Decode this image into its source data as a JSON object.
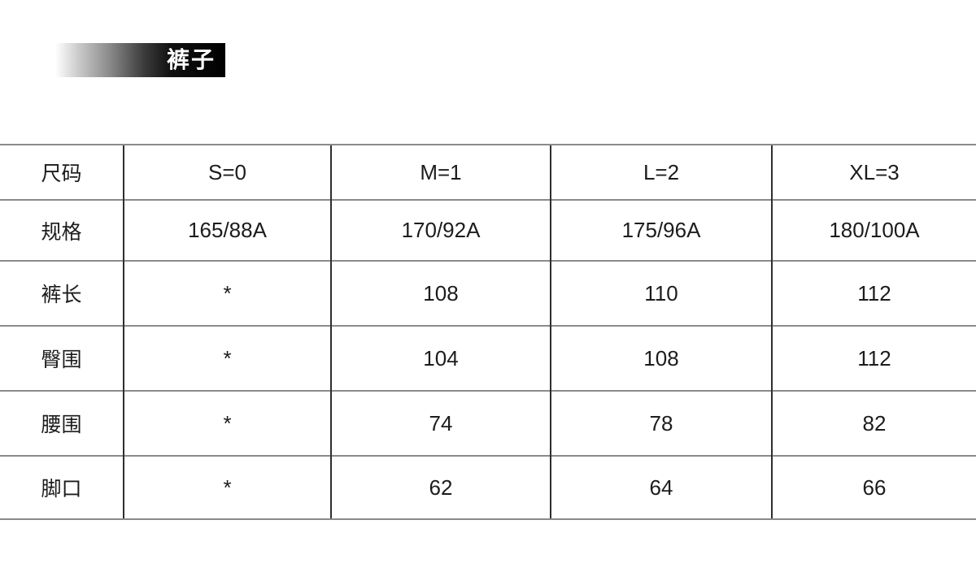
{
  "page": {
    "background_color": "#ffffff"
  },
  "header": {
    "title": "裤子",
    "bar_gradient_start": "#ffffff",
    "bar_gradient_end": "#000000",
    "title_color": "#ffffff"
  },
  "table": {
    "border_horizontal_color": "#8a8a8a",
    "border_vertical_color": "#2e2e2e",
    "text_color": "#1c1c1c",
    "rows": [
      {
        "label": "尺码",
        "values": [
          "S=0",
          "M=1",
          "L=2",
          "XL=3"
        ]
      },
      {
        "label": "规格",
        "values": [
          "165/88A",
          "170/92A",
          "175/96A",
          "180/100A"
        ]
      },
      {
        "label": "裤长",
        "values": [
          "*",
          "108",
          "110",
          "112"
        ]
      },
      {
        "label": "臀围",
        "values": [
          "*",
          "104",
          "108",
          "112"
        ]
      },
      {
        "label": "腰围",
        "values": [
          "*",
          "74",
          "78",
          "82"
        ]
      },
      {
        "label": "脚口",
        "values": [
          "*",
          "62",
          "64",
          "66"
        ]
      }
    ]
  }
}
